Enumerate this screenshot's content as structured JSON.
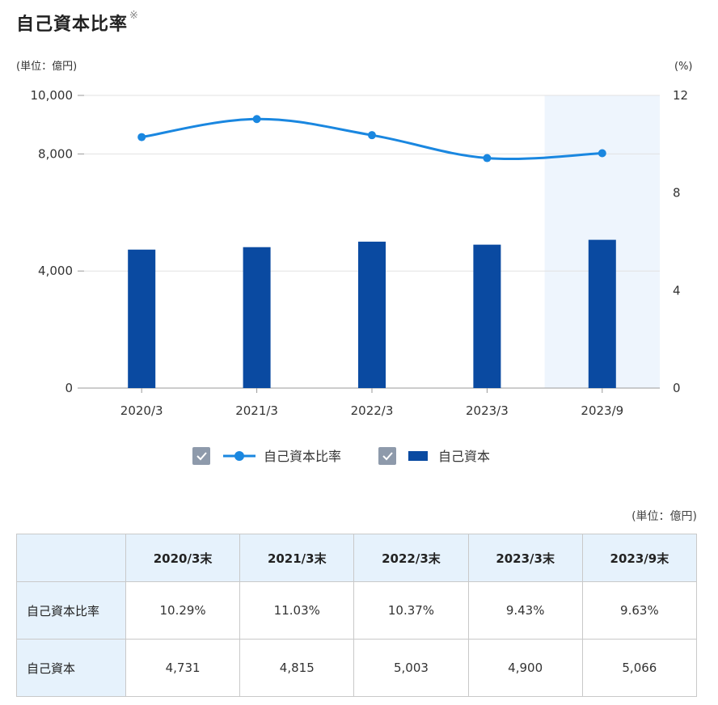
{
  "title": "自己資本比率",
  "title_mark": "※",
  "chart_data": {
    "type": "bar+line",
    "categories": [
      "2020/3",
      "2021/3",
      "2022/3",
      "2023/3",
      "2023/9"
    ],
    "left_axis": {
      "unit": "(単位：億円)",
      "ylim": [
        0,
        10000
      ],
      "ticks": [
        "0",
        "4,000",
        "8,000",
        "10,000"
      ],
      "tick_values": [
        0,
        4000,
        8000,
        10000
      ]
    },
    "right_axis": {
      "unit": "(%)",
      "ylim": [
        0,
        12
      ],
      "ticks": [
        "0",
        "4",
        "8",
        "12"
      ],
      "tick_values": [
        0,
        4,
        8,
        12
      ]
    },
    "series": [
      {
        "name": "自己資本比率",
        "type": "line",
        "axis": "right",
        "values": [
          10.29,
          11.03,
          10.37,
          9.43,
          9.63
        ],
        "color": "#1a87e0"
      },
      {
        "name": "自己資本",
        "type": "bar",
        "axis": "left",
        "values": [
          4731,
          4815,
          5003,
          4900,
          5066
        ],
        "color": "#0a4aa1"
      }
    ],
    "highlight_category": "2023/9",
    "grid": true,
    "legend_placement": "bottom-center"
  },
  "table": {
    "unit": "(単位：億円)",
    "headers": [
      "",
      "2020/3末",
      "2021/3末",
      "2022/3末",
      "2023/3末",
      "2023/9末"
    ],
    "rows": [
      {
        "label": "自己資本比率",
        "cells": [
          "10.29%",
          "11.03%",
          "10.37%",
          "9.43%",
          "9.63%"
        ]
      },
      {
        "label": "自己資本",
        "cells": [
          "4,731",
          "4,815",
          "5,003",
          "4,900",
          "5,066"
        ]
      }
    ]
  }
}
